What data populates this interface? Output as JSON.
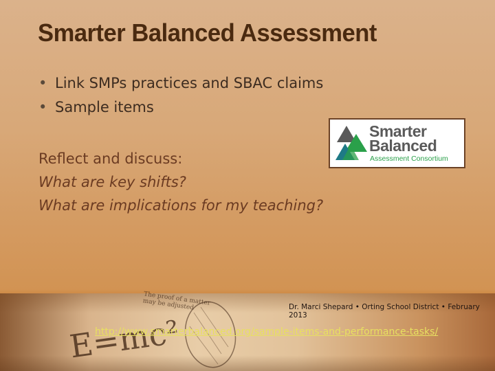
{
  "slide": {
    "title": "Smarter Balanced Assessment",
    "bullets": [
      {
        "marker": "•",
        "text": "Link SMPs practices and SBAC claims"
      },
      {
        "marker": "•",
        "text": "Sample items"
      }
    ],
    "reflect": {
      "heading": "Reflect and discuss:",
      "questions": [
        "What are key shifts?",
        "What are implications for my teaching?"
      ]
    },
    "logo": {
      "line1": "Smarter",
      "line2": "Balanced",
      "line3": "Assessment Consortium",
      "colors": {
        "gray": "#5a5a5a",
        "green": "#2aa04a",
        "teal": "#1e7a86"
      }
    }
  },
  "footer": {
    "credit": "Dr. Marci Shepard • Orting School District • February 2013",
    "link": "http://www.smarterbalanced.org/sample-items-and-performance-tasks/",
    "background_formula": "E=mc²",
    "background_note": "The proof of a matter\nmay be adjusted"
  }
}
